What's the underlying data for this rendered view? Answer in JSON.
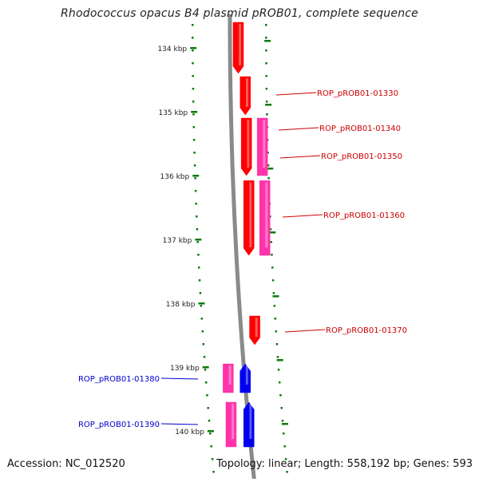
{
  "title": "Rhodococcus opacus B4 plasmid pROB01, complete sequence",
  "footer": {
    "accession": "Accession: NC_012520",
    "summary": "Topology: linear; Length: 558,192 bp; Genes: 593"
  },
  "scale": {
    "ticks": [
      "134 kbp",
      "135 kbp",
      "136 kbp",
      "137 kbp",
      "138 kbp",
      "139 kbp",
      "140 kbp"
    ]
  },
  "colors": {
    "backbone": "#8a8a8a",
    "tick": "#0a7a0a",
    "gene_red": "#ff0000",
    "gene_pink": "#ff33aa",
    "gene_blue": "#0000ee",
    "label_red": "#cc0000",
    "label_blue": "#0000cc"
  },
  "genes": [
    {
      "name": "",
      "color": "red",
      "start_kbp": 133.6,
      "end_kbp": 134.4,
      "direction": "down"
    },
    {
      "name": "",
      "color": "red",
      "start_kbp": 134.45,
      "end_kbp": 135.05,
      "direction": "down"
    },
    {
      "name": "",
      "color": "red",
      "start_kbp": 135.1,
      "end_kbp": 136.0,
      "direction": "down"
    },
    {
      "name": "",
      "color": "pink",
      "start_kbp": 135.1,
      "end_kbp": 136.0,
      "direction": "none"
    },
    {
      "name": "",
      "color": "red",
      "start_kbp": 136.08,
      "end_kbp": 137.25,
      "direction": "down"
    },
    {
      "name": "",
      "color": "pink",
      "start_kbp": 136.08,
      "end_kbp": 137.25,
      "direction": "none"
    },
    {
      "name": "",
      "color": "red",
      "start_kbp": 138.2,
      "end_kbp": 138.65,
      "direction": "down"
    },
    {
      "name": "",
      "color": "pink",
      "start_kbp": 138.95,
      "end_kbp": 139.4,
      "direction": "none"
    },
    {
      "name": "",
      "color": "blue",
      "start_kbp": 138.95,
      "end_kbp": 139.4,
      "direction": "up"
    },
    {
      "name": "",
      "color": "pink",
      "start_kbp": 139.55,
      "end_kbp": 140.25,
      "direction": "none"
    },
    {
      "name": "",
      "color": "blue",
      "start_kbp": 139.55,
      "end_kbp": 140.25,
      "direction": "up"
    }
  ],
  "labels": [
    {
      "text": "ROP_pROB01-01330",
      "side": "right",
      "color": "red"
    },
    {
      "text": "ROP_pROB01-01340",
      "side": "right",
      "color": "red"
    },
    {
      "text": "ROP_pROB01-01350",
      "side": "right",
      "color": "red"
    },
    {
      "text": "ROP_pROB01-01360",
      "side": "right",
      "color": "red"
    },
    {
      "text": "ROP_pROB01-01370",
      "side": "right",
      "color": "red"
    },
    {
      "text": "ROP_pROB01-01380",
      "side": "left",
      "color": "blue"
    },
    {
      "text": "ROP_pROB01-01390",
      "side": "left",
      "color": "blue"
    }
  ]
}
